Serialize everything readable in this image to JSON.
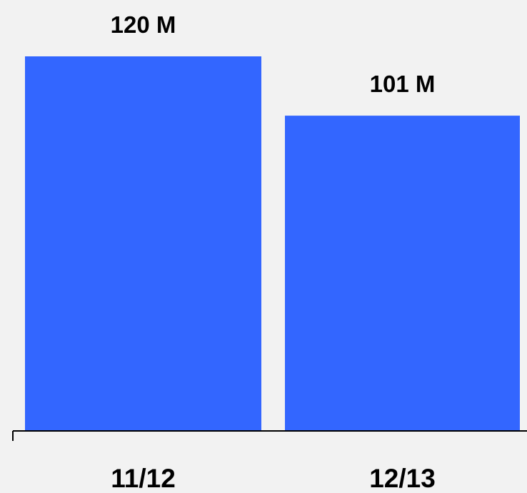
{
  "chart_data": {
    "type": "bar",
    "categories": [
      "11/12",
      "12/13"
    ],
    "values": [
      120,
      101
    ],
    "value_labels": [
      "120 M",
      "101 M"
    ],
    "title": "",
    "xlabel": "",
    "ylabel": "",
    "ylim": [
      0,
      120
    ],
    "grid": false,
    "legend": "none",
    "bar_color": "#3366ff",
    "background_color": "#f2f2f2",
    "axis_color": "#000000"
  }
}
